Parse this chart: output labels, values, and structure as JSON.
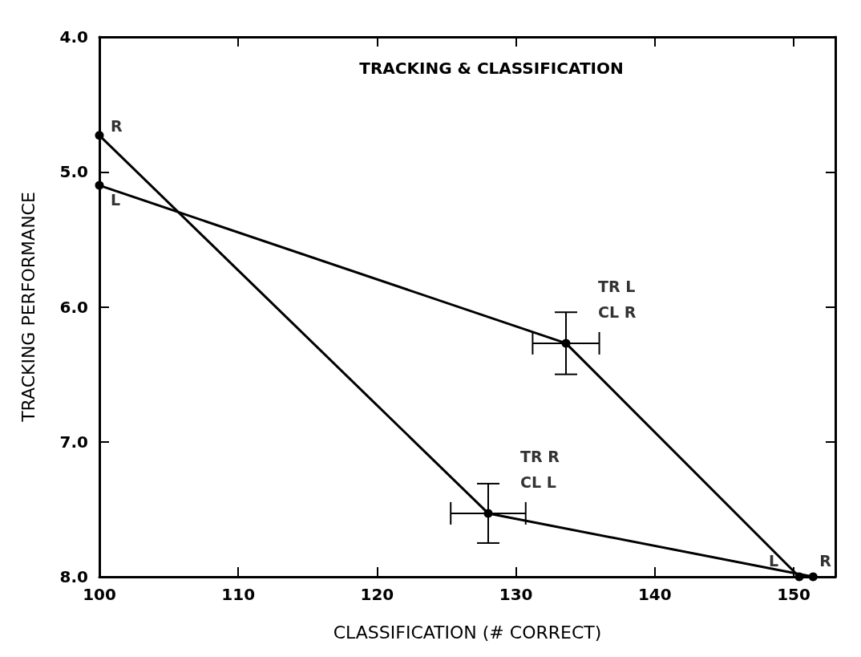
{
  "chart_data": {
    "type": "line",
    "title": "TRACKING & CLASSIFICATION",
    "xlabel": "CLASSIFICATION (# CORRECT)",
    "ylabel": "TRACKING PERFORMANCE",
    "series": [
      {
        "color": "#000000",
        "x": [
          100,
          128.0,
          151.4
        ],
        "values": [
          4.73,
          7.53,
          8.0
        ],
        "errors": [
          null,
          0.22,
          null
        ],
        "xerrors": [
          null,
          2.7,
          null
        ]
      },
      {
        "color": "#000000",
        "x": [
          100,
          133.6,
          150.4
        ],
        "values": [
          5.1,
          6.27,
          8.0
        ],
        "errors": [
          null,
          0.23,
          null
        ],
        "xerrors": [
          null,
          2.4,
          null
        ]
      }
    ],
    "xlim": [
      100,
      153
    ],
    "xticks": [
      100,
      110,
      120,
      130,
      140,
      150
    ],
    "ylim": [
      8.0,
      4.0
    ],
    "yticks": [
      {
        "value": 4,
        "label": "4.0"
      },
      {
        "value": 5,
        "label": "5.0"
      },
      {
        "value": 6,
        "label": "6.0"
      },
      {
        "value": 7,
        "label": "7.0"
      },
      {
        "value": 8,
        "label": "8.0"
      }
    ],
    "annotations": [
      {
        "text": "R",
        "x": 100,
        "y": 4.73
      },
      {
        "text": "L",
        "x": 100,
        "y": 5.1
      },
      {
        "text": "TR L\nCL R",
        "x": 133.6,
        "y": 6.27
      },
      {
        "text": "TR R\nCL L",
        "x": 128.0,
        "y": 7.53
      },
      {
        "text": "L",
        "x": 150.4,
        "y": 8.0
      },
      {
        "text": "R",
        "x": 151.4,
        "y": 8.0
      }
    ],
    "marker": "circle",
    "line_style": "solid"
  }
}
